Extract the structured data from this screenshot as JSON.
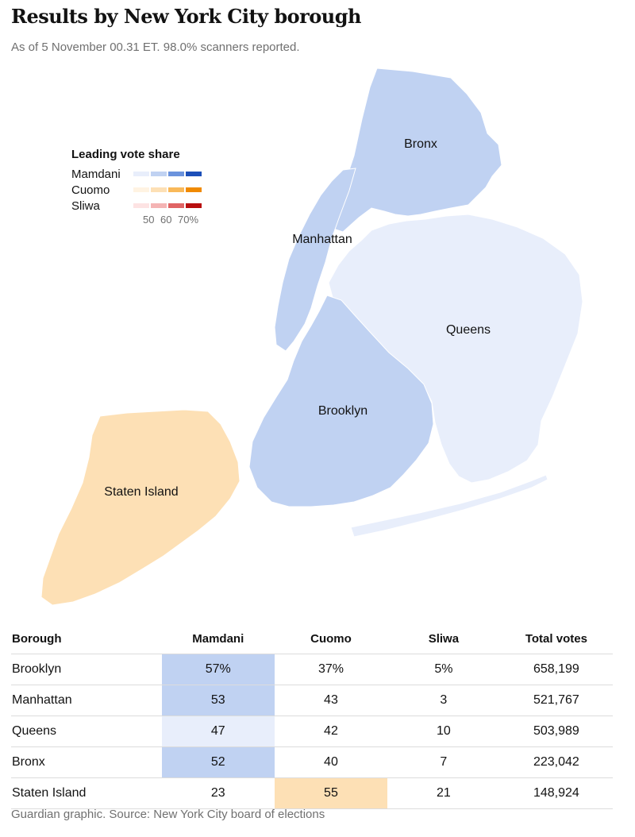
{
  "header": {
    "title": "Results by New York City borough",
    "subtitle": "As of 5 November 00.31 ET. 98.0% scanners reported."
  },
  "legend": {
    "title": "Leading vote share",
    "candidates": [
      {
        "name": "Mamdani",
        "colors": [
          "#e8eefb",
          "#c0d2f2",
          "#6b93dd",
          "#1c4fb8"
        ]
      },
      {
        "name": "Cuomo",
        "colors": [
          "#fff3e2",
          "#fde0b5",
          "#f9b95a",
          "#f08a00"
        ]
      },
      {
        "name": "Sliwa",
        "colors": [
          "#fde3e3",
          "#f4b4b4",
          "#e06464",
          "#b80f0f"
        ]
      }
    ],
    "ticks": [
      "50",
      "60",
      "70%"
    ]
  },
  "map": {
    "boroughs": [
      {
        "name": "Bronx",
        "fill": "#c0d2f2"
      },
      {
        "name": "Manhattan",
        "fill": "#c0d2f2"
      },
      {
        "name": "Queens",
        "fill": "#e8eefb"
      },
      {
        "name": "Brooklyn",
        "fill": "#c0d2f2"
      },
      {
        "name": "Staten Island",
        "fill": "#fde0b5"
      }
    ]
  },
  "table": {
    "headers": [
      "Borough",
      "Mamdani",
      "Cuomo",
      "Sliwa",
      "Total votes"
    ],
    "rows": [
      {
        "borough": "Brooklyn",
        "mamdani": "57%",
        "cuomo": "37%",
        "sliwa": "5%",
        "total": "658,199",
        "leader": "mamdani",
        "highlight": "#c0d2f2"
      },
      {
        "borough": "Manhattan",
        "mamdani": "53",
        "cuomo": "43",
        "sliwa": "3",
        "total": "521,767",
        "leader": "mamdani",
        "highlight": "#c0d2f2"
      },
      {
        "borough": "Queens",
        "mamdani": "47",
        "cuomo": "42",
        "sliwa": "10",
        "total": "503,989",
        "leader": "mamdani",
        "highlight": "#e8eefb"
      },
      {
        "borough": "Bronx",
        "mamdani": "52",
        "cuomo": "40",
        "sliwa": "7",
        "total": "223,042",
        "leader": "mamdani",
        "highlight": "#c0d2f2"
      },
      {
        "borough": "Staten Island",
        "mamdani": "23",
        "cuomo": "55",
        "sliwa": "21",
        "total": "148,924",
        "leader": "cuomo",
        "highlight": "#fde0b5"
      }
    ]
  },
  "footer": {
    "source": "Guardian graphic. Source: New York City board of elections"
  }
}
